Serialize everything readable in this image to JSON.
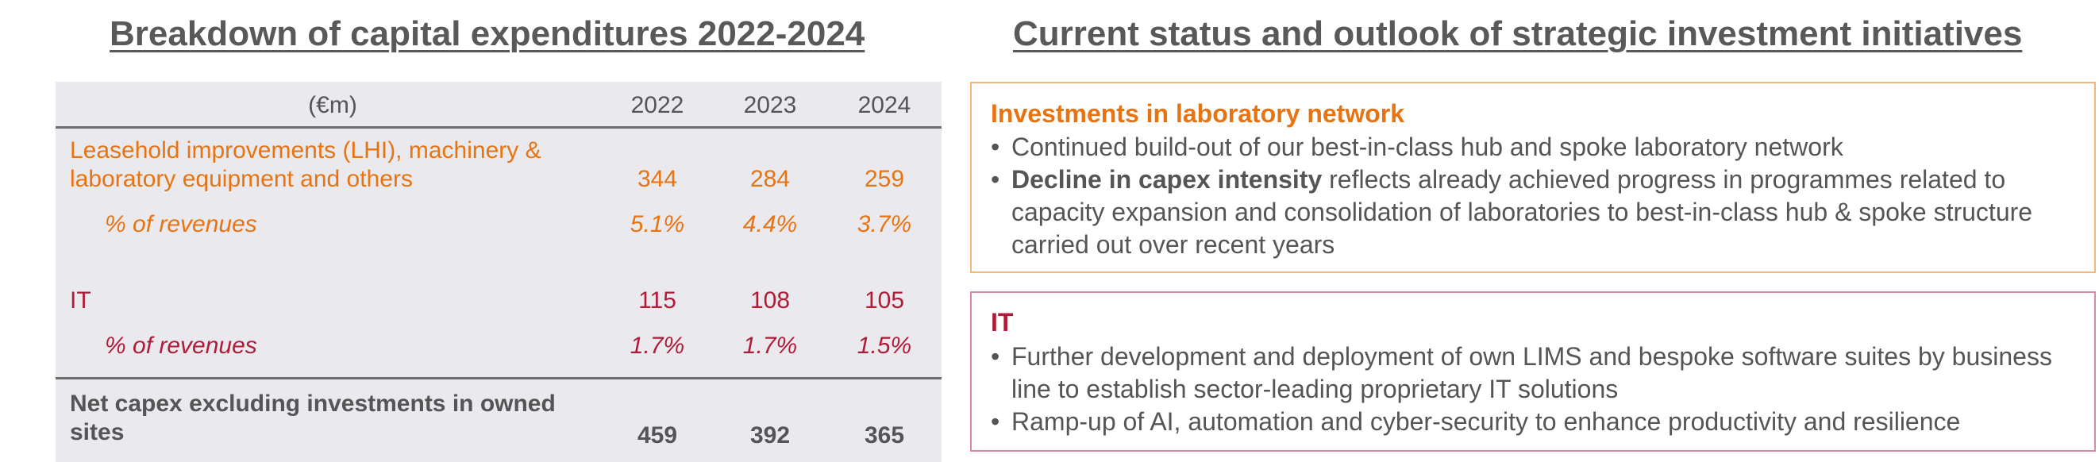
{
  "left_title": "Breakdown of capital expenditures 2022-2024",
  "right_title": "Current status and outlook of strategic investment initiatives",
  "table": {
    "unit_header": "(€m)",
    "years": [
      "2022",
      "2023",
      "2024"
    ],
    "lhi": {
      "label_line1": "Leasehold improvements (LHI), machinery &",
      "label_line2": "laboratory equipment and others",
      "values": [
        "344",
        "284",
        "259"
      ],
      "pct_label": "% of revenues",
      "pct_values": [
        "5.1%",
        "4.4%",
        "3.7%"
      ]
    },
    "it": {
      "label": "IT",
      "values": [
        "115",
        "108",
        "105"
      ],
      "pct_label": "% of revenues",
      "pct_values": [
        "1.7%",
        "1.7%",
        "1.5%"
      ]
    },
    "net": {
      "label_line1": "Net capex excluding investments in owned",
      "label_line2": "sites",
      "values": [
        "459",
        "392",
        "365"
      ]
    }
  },
  "lab_box": {
    "heading": "Investments in laboratory network",
    "bullet1": "Continued build-out of our best-in-class hub and spoke laboratory network",
    "bullet2_bold": "Decline in capex intensity",
    "bullet2_rest": " reflects already achieved progress in programmes related to capacity expansion and consolidation of laboratories to best-in-class hub & spoke structure carried out over recent years"
  },
  "it_box": {
    "heading": "IT",
    "bullet1": "Further development and deployment of own LIMS and bespoke software suites by business line to establish sector-leading proprietary IT solutions",
    "bullet2": "Ramp-up of AI, automation and cyber-security to enhance productivity and resilience"
  },
  "bullet_char": "•",
  "colors": {
    "orange": "#e87411",
    "red": "#b01c38",
    "gray": "#555555",
    "table_bg": "#e9e9ee"
  }
}
